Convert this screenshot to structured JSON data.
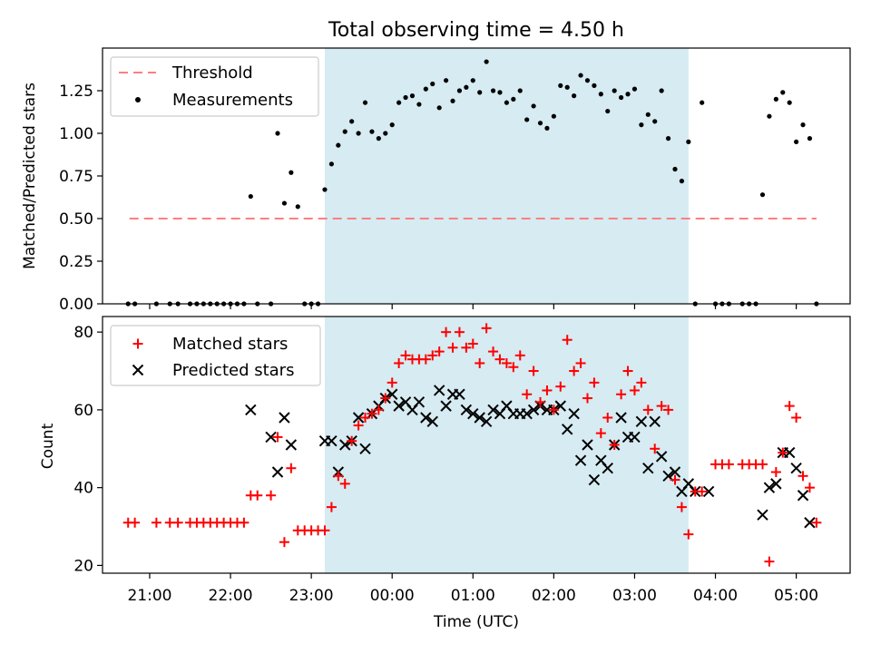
{
  "title": "Total observing time = 4.50 h",
  "top_ylabel": "Matched/Predicted stars",
  "bottom_ylabel": "Count",
  "xlabel": "Time (UTC)",
  "x_ticks": [
    "21:00",
    "22:00",
    "23:00",
    "00:00",
    "01:00",
    "02:00",
    "03:00",
    "04:00",
    "05:00"
  ],
  "colors": {
    "shade": "#add8e6",
    "threshold": "#ff7f7f",
    "measurement": "#000000",
    "matched": "#ff0000",
    "predicted": "#000000"
  },
  "chart_data": [
    {
      "type": "scatter",
      "xlim": [
        "20:25",
        "05:40"
      ],
      "ylim": [
        0,
        1.5
      ],
      "yticks": [
        "0.00",
        "0.25",
        "0.50",
        "0.75",
        "1.00",
        "1.25"
      ],
      "legend_position": "top-left",
      "legend": [
        "Threshold",
        "Measurements"
      ],
      "shaded_span": [
        "23:10",
        "03:40"
      ],
      "threshold": {
        "name": "Threshold",
        "y": 0.5,
        "x_range": [
          "20:45",
          "05:15"
        ]
      },
      "series": [
        {
          "name": "Measurements",
          "x": [
            "20:44",
            "20:49",
            "21:05",
            "21:15",
            "21:21",
            "21:30",
            "21:35",
            "21:40",
            "21:45",
            "21:50",
            "21:55",
            "22:00",
            "22:05",
            "22:10",
            "22:15",
            "22:20",
            "22:30",
            "22:35",
            "22:40",
            "22:45",
            "22:50",
            "22:55",
            "23:00",
            "23:05",
            "23:10",
            "23:15",
            "23:20",
            "23:25",
            "23:30",
            "23:35",
            "23:40",
            "23:45",
            "23:50",
            "23:55",
            "00:00",
            "00:05",
            "00:10",
            "00:15",
            "00:20",
            "00:25",
            "00:30",
            "00:35",
            "00:40",
            "00:45",
            "00:50",
            "00:55",
            "01:00",
            "01:05",
            "01:10",
            "01:15",
            "01:20",
            "01:25",
            "01:30",
            "01:35",
            "01:40",
            "01:45",
            "01:50",
            "01:55",
            "02:00",
            "02:05",
            "02:10",
            "02:15",
            "02:20",
            "02:25",
            "02:30",
            "02:35",
            "02:40",
            "02:45",
            "02:50",
            "02:55",
            "03:00",
            "03:05",
            "03:10",
            "03:15",
            "03:20",
            "03:25",
            "03:30",
            "03:35",
            "03:40",
            "03:45",
            "03:50",
            "04:00",
            "04:05",
            "04:10",
            "04:20",
            "04:25",
            "04:30",
            "04:35",
            "04:40",
            "04:45",
            "04:50",
            "04:55",
            "05:00",
            "05:05",
            "05:10",
            "05:15"
          ],
          "y": [
            0,
            0,
            0,
            0,
            0,
            0,
            0,
            0,
            0,
            0,
            0,
            0,
            0,
            0,
            0.63,
            0,
            0,
            1.0,
            0.59,
            0.77,
            0.57,
            0,
            0,
            0,
            0.67,
            0.82,
            0.93,
            1.01,
            1.07,
            1.0,
            1.18,
            1.01,
            0.97,
            1.0,
            1.05,
            1.18,
            1.21,
            1.22,
            1.17,
            1.26,
            1.29,
            1.15,
            1.31,
            1.19,
            1.25,
            1.27,
            1.31,
            1.24,
            1.42,
            1.25,
            1.24,
            1.18,
            1.2,
            1.25,
            1.08,
            1.16,
            1.06,
            1.03,
            1.1,
            1.28,
            1.27,
            1.22,
            1.34,
            1.31,
            1.28,
            1.23,
            1.13,
            1.25,
            1.21,
            1.23,
            1.26,
            1.05,
            1.11,
            1.07,
            1.25,
            0.97,
            0.79,
            0.72,
            0.95,
            0,
            1.18,
            0,
            0,
            0,
            0,
            0,
            0,
            0.64,
            1.1,
            1.2,
            1.24,
            1.18,
            0.95,
            1.05,
            0.97,
            0
          ]
        }
      ]
    },
    {
      "type": "scatter",
      "xlim": [
        "20:25",
        "05:40"
      ],
      "ylim": [
        18,
        84
      ],
      "yticks": [
        "20",
        "40",
        "60",
        "80"
      ],
      "legend_position": "top-left",
      "legend": [
        "Matched stars",
        "Predicted stars"
      ],
      "shaded_span": [
        "23:10",
        "03:40"
      ],
      "series": [
        {
          "name": "Matched stars",
          "x": [
            "20:44",
            "20:49",
            "21:05",
            "21:15",
            "21:21",
            "21:30",
            "21:35",
            "21:40",
            "21:45",
            "21:50",
            "21:55",
            "22:00",
            "22:05",
            "22:10",
            "22:15",
            "22:20",
            "22:30",
            "22:35",
            "22:40",
            "22:45",
            "22:50",
            "22:55",
            "23:00",
            "23:05",
            "23:10",
            "23:15",
            "23:20",
            "23:25",
            "23:30",
            "23:35",
            "23:40",
            "23:45",
            "23:50",
            "23:55",
            "00:00",
            "00:05",
            "00:10",
            "00:15",
            "00:20",
            "00:25",
            "00:30",
            "00:35",
            "00:40",
            "00:45",
            "00:50",
            "00:55",
            "01:00",
            "01:05",
            "01:10",
            "01:15",
            "01:20",
            "01:25",
            "01:30",
            "01:35",
            "01:40",
            "01:45",
            "01:50",
            "01:55",
            "02:00",
            "02:05",
            "02:10",
            "02:15",
            "02:20",
            "02:25",
            "02:30",
            "02:35",
            "02:40",
            "02:45",
            "02:50",
            "02:55",
            "03:00",
            "03:05",
            "03:10",
            "03:15",
            "03:20",
            "03:25",
            "03:30",
            "03:35",
            "03:40",
            "03:45",
            "03:50",
            "04:00",
            "04:05",
            "04:10",
            "04:20",
            "04:25",
            "04:30",
            "04:35",
            "04:40",
            "04:45",
            "04:50",
            "04:55",
            "05:00",
            "05:05",
            "05:10",
            "05:15"
          ],
          "y": [
            31,
            31,
            31,
            31,
            31,
            31,
            31,
            31,
            31,
            31,
            31,
            31,
            31,
            31,
            38,
            38,
            38,
            53,
            26,
            45,
            29,
            29,
            29,
            29,
            29,
            35,
            43,
            41,
            52,
            56,
            58,
            59,
            60,
            63,
            67,
            72,
            74,
            73,
            73,
            73,
            74,
            75,
            80,
            76,
            80,
            76,
            77,
            72,
            81,
            75,
            73,
            72,
            71,
            74,
            64,
            70,
            62,
            65,
            60,
            66,
            78,
            70,
            72,
            63,
            67,
            54,
            58,
            51,
            64,
            70,
            65,
            67,
            60,
            50,
            61,
            60,
            42,
            35,
            28,
            39,
            39,
            46,
            46,
            46,
            46,
            46,
            46,
            46,
            21,
            44,
            49,
            61,
            58,
            43,
            40,
            31
          ]
        },
        {
          "name": "Predicted stars",
          "x": [
            "22:15",
            "22:30",
            "22:35",
            "22:40",
            "22:45",
            "23:10",
            "23:15",
            "23:20",
            "23:25",
            "23:30",
            "23:35",
            "23:40",
            "23:45",
            "23:50",
            "23:55",
            "00:00",
            "00:05",
            "00:10",
            "00:15",
            "00:20",
            "00:25",
            "00:30",
            "00:35",
            "00:40",
            "00:45",
            "00:50",
            "00:55",
            "01:00",
            "01:05",
            "01:10",
            "01:15",
            "01:20",
            "01:25",
            "01:30",
            "01:35",
            "01:40",
            "01:45",
            "01:50",
            "01:55",
            "02:00",
            "02:05",
            "02:10",
            "02:15",
            "02:20",
            "02:25",
            "02:30",
            "02:35",
            "02:40",
            "02:45",
            "02:50",
            "02:55",
            "03:00",
            "03:05",
            "03:10",
            "03:15",
            "03:20",
            "03:25",
            "03:30",
            "03:35",
            "03:40",
            "03:45",
            "03:55",
            "04:35",
            "04:40",
            "04:45",
            "04:50",
            "04:55",
            "05:00",
            "05:05",
            "05:10"
          ],
          "y": [
            60,
            53,
            44,
            58,
            51,
            52,
            52,
            44,
            51,
            52,
            58,
            50,
            59,
            61,
            63,
            64,
            61,
            62,
            60,
            62,
            58,
            57,
            65,
            61,
            64,
            64,
            60,
            59,
            58,
            57,
            60,
            59,
            61,
            59,
            59,
            59,
            60,
            61,
            60,
            60,
            61,
            55,
            59,
            47,
            51,
            42,
            47,
            45,
            51,
            58,
            53,
            53,
            57,
            45,
            57,
            48,
            43,
            44,
            39,
            41,
            39,
            39,
            33,
            40,
            41,
            49,
            49,
            45,
            38,
            31
          ]
        }
      ]
    }
  ]
}
